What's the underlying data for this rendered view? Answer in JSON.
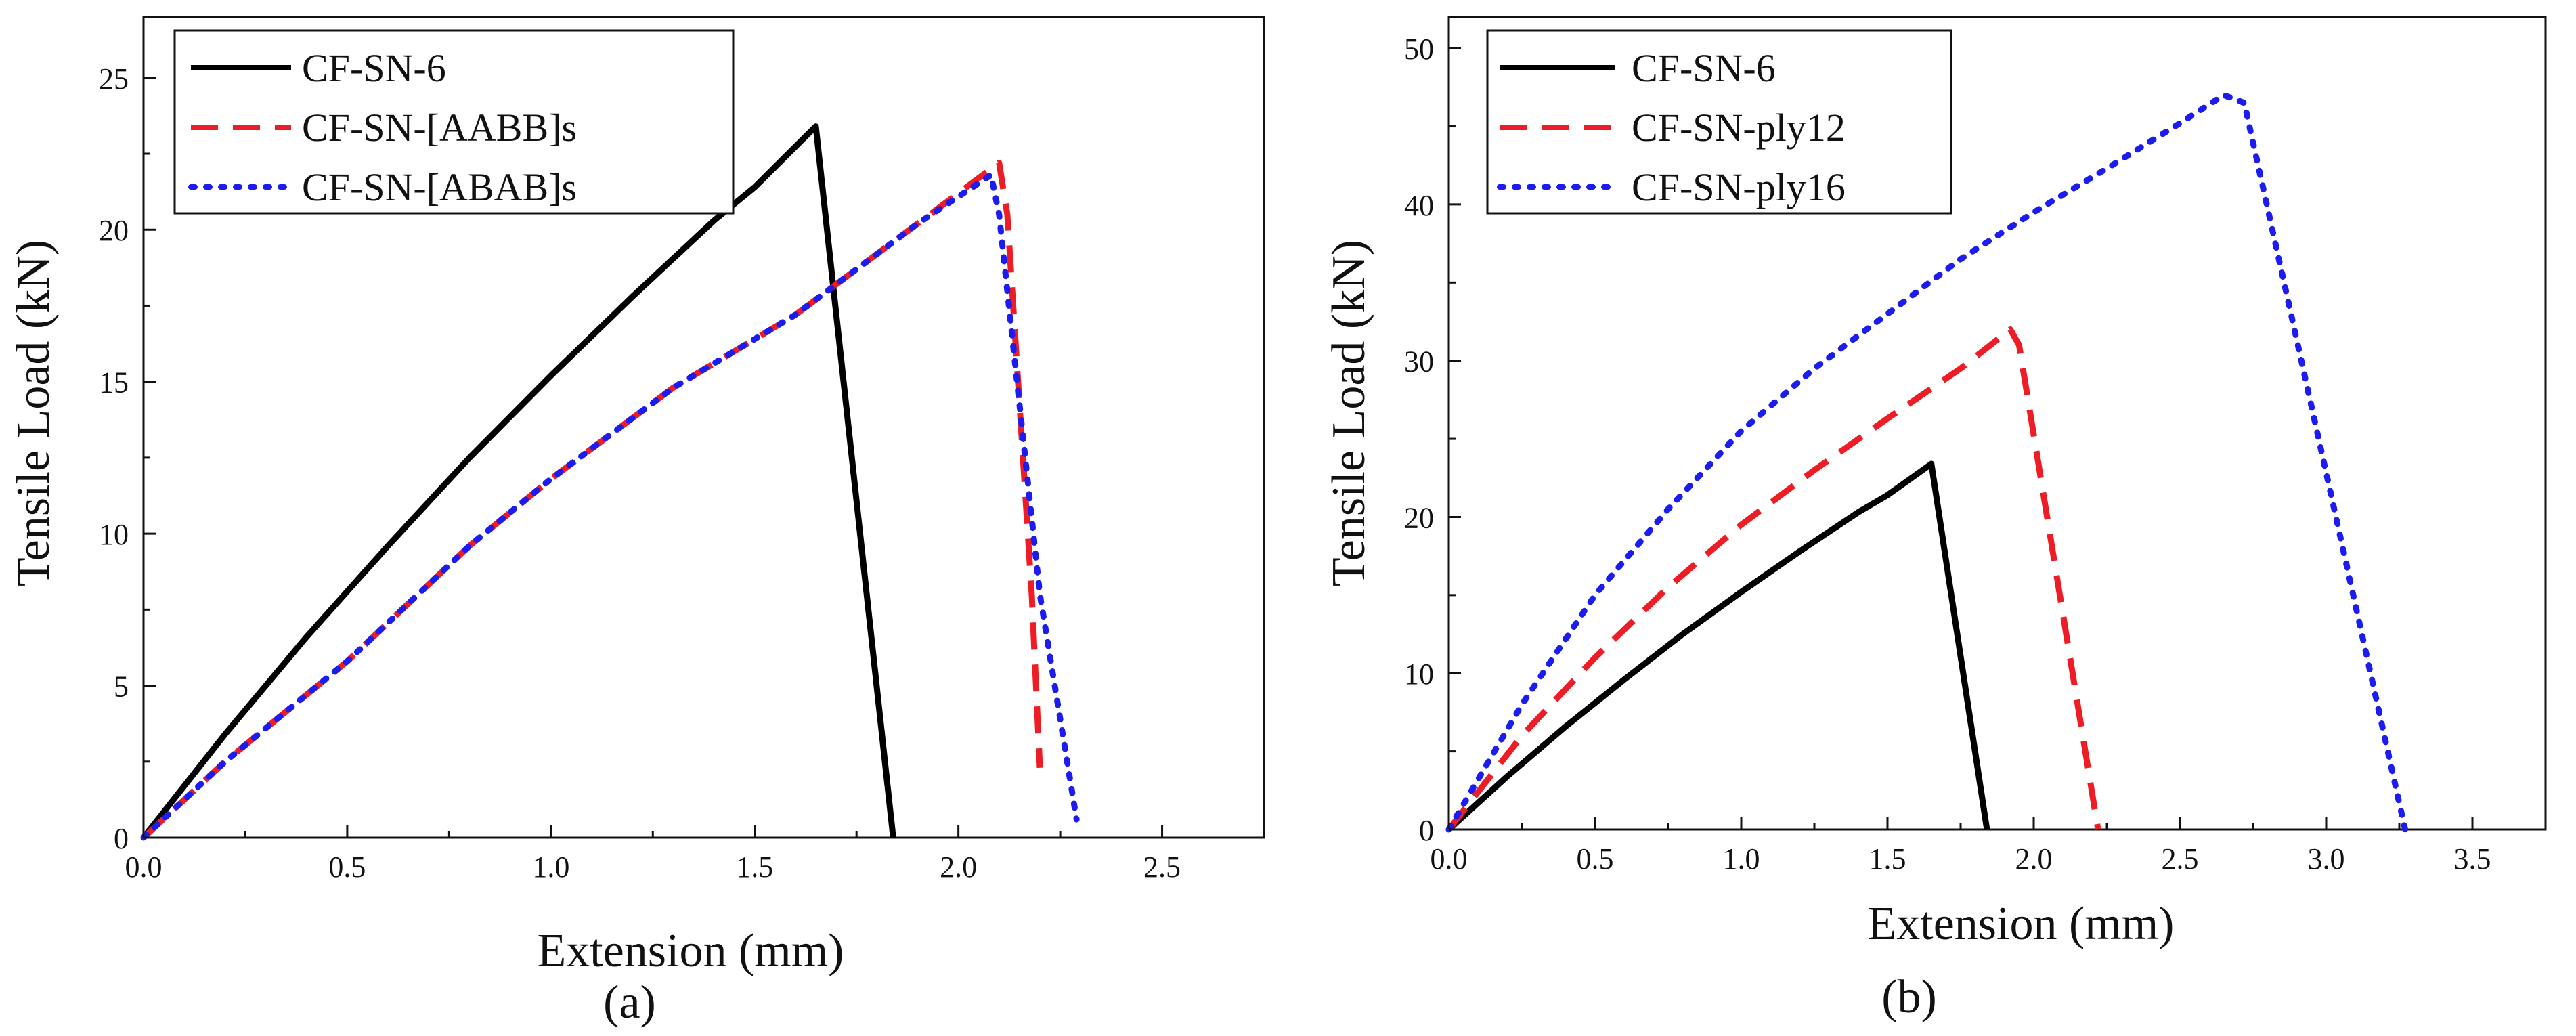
{
  "chart_data": [
    {
      "type": "line",
      "subcaption": "(a)",
      "xlabel": "Extension (mm)",
      "ylabel": "Tensile Load (kN)",
      "xlim": [
        0,
        2.75
      ],
      "ylim": [
        0,
        27
      ],
      "xticks": [
        0.0,
        0.5,
        1.0,
        1.5,
        2.0,
        2.5
      ],
      "xtick_labels": [
        "0.0",
        "0.5",
        "1.0",
        "1.5",
        "2.0",
        "2.5"
      ],
      "yticks": [
        0,
        5,
        10,
        15,
        20,
        25
      ],
      "ytick_labels": [
        "0",
        "5",
        "10",
        "15",
        "20",
        "25"
      ],
      "legend_position": "top-left",
      "series": [
        {
          "name": "CF-SN-6",
          "color": "#000000",
          "style": "solid",
          "x": [
            0,
            0.2,
            0.4,
            0.6,
            0.8,
            1.0,
            1.2,
            1.4,
            1.5,
            1.65,
            1.84
          ],
          "y": [
            0,
            3.4,
            6.6,
            9.6,
            12.5,
            15.2,
            17.8,
            20.3,
            21.4,
            23.4,
            0
          ]
        },
        {
          "name": "CF-SN-[AABB]s",
          "color": "#ee1c25",
          "style": "dashed",
          "x": [
            0,
            0.2,
            0.5,
            0.8,
            1.0,
            1.3,
            1.6,
            1.9,
            2.1,
            2.12,
            2.18,
            2.2
          ],
          "y": [
            0,
            2.5,
            5.8,
            9.6,
            11.8,
            14.8,
            17.2,
            20.2,
            22.2,
            20.5,
            8,
            2.3
          ]
        },
        {
          "name": "CF-SN-[ABAB]s",
          "color": "#1c1cee",
          "style": "dotted",
          "x": [
            0,
            0.2,
            0.5,
            0.8,
            1.0,
            1.3,
            1.6,
            1.9,
            2.08,
            2.1,
            2.2,
            2.29
          ],
          "y": [
            0,
            2.5,
            5.8,
            9.6,
            11.8,
            14.8,
            17.2,
            20.2,
            21.8,
            20.5,
            8,
            0.6
          ]
        }
      ]
    },
    {
      "type": "line",
      "subcaption": "(b)",
      "xlabel": "Extension (mm)",
      "ylabel": "Tensile Load (kN)",
      "xlim": [
        0,
        3.75
      ],
      "ylim": [
        0,
        52
      ],
      "xticks": [
        0.0,
        0.5,
        1.0,
        1.5,
        2.0,
        2.5,
        3.0,
        3.5
      ],
      "xtick_labels": [
        "0.0",
        "0.5",
        "1.0",
        "1.5",
        "2.0",
        "2.5",
        "3.0",
        "3.5"
      ],
      "yticks": [
        0,
        10,
        20,
        30,
        40,
        50
      ],
      "ytick_labels": [
        "0",
        "10",
        "20",
        "30",
        "40",
        "50"
      ],
      "legend_position": "top-left",
      "series": [
        {
          "name": "CF-SN-6",
          "color": "#000000",
          "style": "solid",
          "x": [
            0,
            0.2,
            0.4,
            0.6,
            0.8,
            1.0,
            1.2,
            1.4,
            1.5,
            1.65,
            1.84
          ],
          "y": [
            0,
            3.4,
            6.6,
            9.6,
            12.5,
            15.2,
            17.8,
            20.3,
            21.4,
            23.4,
            0
          ]
        },
        {
          "name": "CF-SN-ply12",
          "color": "#ee1c25",
          "style": "dashed",
          "x": [
            0,
            0.25,
            0.5,
            0.75,
            1.0,
            1.25,
            1.5,
            1.75,
            1.92,
            1.95,
            2.22
          ],
          "y": [
            0,
            6,
            11,
            15.5,
            19.5,
            23,
            26.3,
            29.5,
            32,
            31,
            0
          ]
        },
        {
          "name": "CF-SN-ply16",
          "color": "#1c1cee",
          "style": "dotted",
          "x": [
            0,
            0.25,
            0.5,
            0.75,
            1.0,
            1.25,
            1.5,
            1.75,
            2.0,
            2.25,
            2.5,
            2.65,
            2.72,
            3.27
          ],
          "y": [
            0,
            8,
            15,
            20.5,
            25.5,
            29.5,
            33,
            36.5,
            39.5,
            42.3,
            45.2,
            47,
            46.5,
            0
          ]
        }
      ]
    }
  ]
}
